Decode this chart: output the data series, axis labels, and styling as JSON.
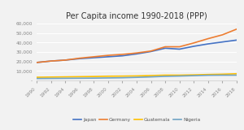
{
  "title": "Per Capita income 1990-2018 (PPP)",
  "years": [
    1990,
    1992,
    1994,
    1996,
    1998,
    2000,
    2002,
    2004,
    2006,
    2008,
    2010,
    2012,
    2014,
    2016,
    2018
  ],
  "japan": [
    19000,
    20500,
    21500,
    23000,
    24000,
    25000,
    26000,
    28000,
    30500,
    34000,
    33000,
    36000,
    38500,
    40500,
    42500
  ],
  "germany": [
    19000,
    20500,
    21500,
    23500,
    25000,
    26500,
    27500,
    29000,
    31000,
    35500,
    35500,
    39500,
    44000,
    48000,
    54000
  ],
  "guatemala": [
    3500,
    3700,
    3900,
    4100,
    4300,
    4600,
    4700,
    4900,
    5300,
    5700,
    5700,
    6000,
    6400,
    6700,
    7200
  ],
  "nigeria": [
    2200,
    2300,
    2400,
    2500,
    2600,
    2800,
    3000,
    3400,
    3900,
    4500,
    4800,
    5200,
    5600,
    5700,
    5700
  ],
  "colors": {
    "Japan": "#4472c4",
    "Germany": "#ed7d31",
    "Guatemala": "#ffc000",
    "Nigeria": "#70a3c4"
  },
  "ylim": [
    0,
    60000
  ],
  "yticks": [
    0,
    10000,
    20000,
    30000,
    40000,
    50000,
    60000
  ],
  "background": "#f2f2f2",
  "grid_color": "#ffffff",
  "title_fontsize": 7,
  "tick_fontsize": 4.2
}
